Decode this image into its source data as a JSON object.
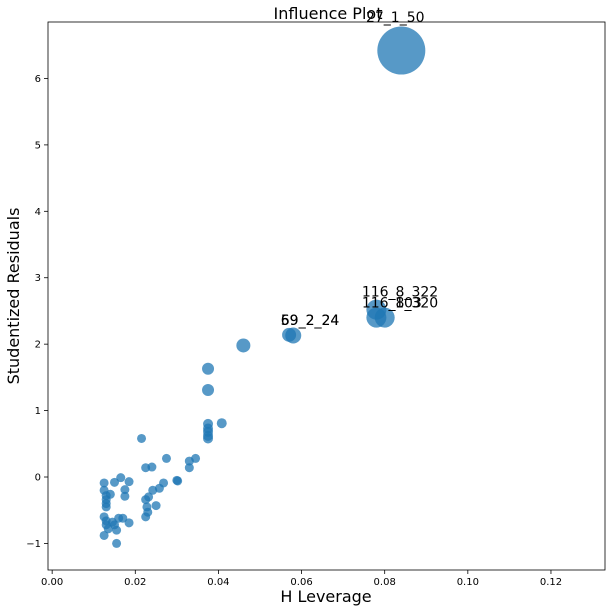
{
  "chart_data": {
    "type": "scatter",
    "title": "Influence Plot",
    "xlabel": "H Leverage",
    "ylabel": "Studentized Residuals",
    "xlim": [
      -0.001,
      0.133
    ],
    "ylim": [
      -1.4,
      6.85
    ],
    "x_ticks": [
      "0.00",
      "0.02",
      "0.04",
      "0.06",
      "0.08",
      "0.10",
      "0.12"
    ],
    "x_tick_values": [
      0.0,
      0.02,
      0.04,
      0.06,
      0.08,
      0.1,
      0.12
    ],
    "y_ticks": [
      "−1",
      "0",
      "1",
      "2",
      "3",
      "4",
      "5",
      "6"
    ],
    "y_tick_values": [
      -1,
      0,
      1,
      2,
      3,
      4,
      5,
      6
    ],
    "grid": false,
    "color": "#1f77b4",
    "points": [
      {
        "x": 0.084,
        "y": 6.42,
        "s": 24
      },
      {
        "x": 0.08,
        "y": 2.4,
        "s": 10
      },
      {
        "x": 0.078,
        "y": 2.4,
        "s": 10
      },
      {
        "x": 0.078,
        "y": 2.52,
        "s": 10
      },
      {
        "x": 0.058,
        "y": 2.13,
        "s": 8
      },
      {
        "x": 0.057,
        "y": 2.14,
        "s": 7
      },
      {
        "x": 0.046,
        "y": 1.98,
        "s": 7
      },
      {
        "x": 0.0375,
        "y": 1.63,
        "s": 6
      },
      {
        "x": 0.0375,
        "y": 1.31,
        "s": 6
      },
      {
        "x": 0.0375,
        "y": 0.8,
        "s": 5
      },
      {
        "x": 0.0375,
        "y": 0.73,
        "s": 5
      },
      {
        "x": 0.0375,
        "y": 0.68,
        "s": 5
      },
      {
        "x": 0.0375,
        "y": 0.62,
        "s": 5
      },
      {
        "x": 0.0408,
        "y": 0.81,
        "s": 5
      },
      {
        "x": 0.0375,
        "y": 0.58,
        "s": 5
      },
      {
        "x": 0.0345,
        "y": 0.28,
        "s": 4.5
      },
      {
        "x": 0.033,
        "y": 0.24,
        "s": 4.5
      },
      {
        "x": 0.033,
        "y": 0.14,
        "s": 4.5
      },
      {
        "x": 0.0275,
        "y": 0.28,
        "s": 4.5
      },
      {
        "x": 0.0215,
        "y": 0.58,
        "s": 4.5
      },
      {
        "x": 0.0225,
        "y": 0.14,
        "s": 4.5
      },
      {
        "x": 0.024,
        "y": 0.15,
        "s": 4.5
      },
      {
        "x": 0.03,
        "y": -0.05,
        "s": 4.5
      },
      {
        "x": 0.0302,
        "y": -0.06,
        "s": 4.5
      },
      {
        "x": 0.0268,
        "y": -0.09,
        "s": 4.5
      },
      {
        "x": 0.0258,
        "y": -0.17,
        "s": 4.5
      },
      {
        "x": 0.0242,
        "y": -0.2,
        "s": 4.5
      },
      {
        "x": 0.0232,
        "y": -0.3,
        "s": 4.5
      },
      {
        "x": 0.0225,
        "y": -0.34,
        "s": 4.5
      },
      {
        "x": 0.0228,
        "y": -0.45,
        "s": 4.5
      },
      {
        "x": 0.025,
        "y": -0.43,
        "s": 4.5
      },
      {
        "x": 0.023,
        "y": -0.53,
        "s": 4.5
      },
      {
        "x": 0.0225,
        "y": -0.6,
        "s": 4.5
      },
      {
        "x": 0.0125,
        "y": -0.09,
        "s": 4.5
      },
      {
        "x": 0.0125,
        "y": -0.2,
        "s": 4.5
      },
      {
        "x": 0.013,
        "y": -0.28,
        "s": 4.5
      },
      {
        "x": 0.014,
        "y": -0.26,
        "s": 4.5
      },
      {
        "x": 0.013,
        "y": -0.34,
        "s": 4.5
      },
      {
        "x": 0.013,
        "y": -0.4,
        "s": 4.5
      },
      {
        "x": 0.013,
        "y": -0.45,
        "s": 4.5
      },
      {
        "x": 0.015,
        "y": -0.08,
        "s": 4.5
      },
      {
        "x": 0.0165,
        "y": -0.01,
        "s": 4.5
      },
      {
        "x": 0.0185,
        "y": -0.07,
        "s": 4.5
      },
      {
        "x": 0.0175,
        "y": -0.19,
        "s": 4.5
      },
      {
        "x": 0.0175,
        "y": -0.29,
        "s": 4.5
      },
      {
        "x": 0.0125,
        "y": -0.6,
        "s": 4.5
      },
      {
        "x": 0.013,
        "y": -0.66,
        "s": 4.5
      },
      {
        "x": 0.013,
        "y": -0.72,
        "s": 4.5
      },
      {
        "x": 0.0135,
        "y": -0.78,
        "s": 4.5
      },
      {
        "x": 0.0145,
        "y": -0.68,
        "s": 4.5
      },
      {
        "x": 0.015,
        "y": -0.72,
        "s": 4.5
      },
      {
        "x": 0.016,
        "y": -0.62,
        "s": 4.5
      },
      {
        "x": 0.017,
        "y": -0.62,
        "s": 4.5
      },
      {
        "x": 0.0155,
        "y": -0.8,
        "s": 4.5
      },
      {
        "x": 0.0185,
        "y": -0.69,
        "s": 4.5
      },
      {
        "x": 0.0125,
        "y": -0.88,
        "s": 4.5
      },
      {
        "x": 0.0155,
        "y": -1.0,
        "s": 4.5
      }
    ],
    "annotations": [
      {
        "text": "27_1_50",
        "x": 0.0755,
        "y": 6.85
      },
      {
        "text": "116_8_322",
        "x": 0.0745,
        "y": 2.72
      },
      {
        "text": "116_8_320",
        "x": 0.0745,
        "y": 2.55
      },
      {
        "text": "103",
        "x": 0.0825,
        "y": 2.55
      },
      {
        "text": "59_2_24",
        "x": 0.055,
        "y": 2.29
      },
      {
        "text": "69_2_24",
        "x": 0.055,
        "y": 2.29
      }
    ]
  }
}
